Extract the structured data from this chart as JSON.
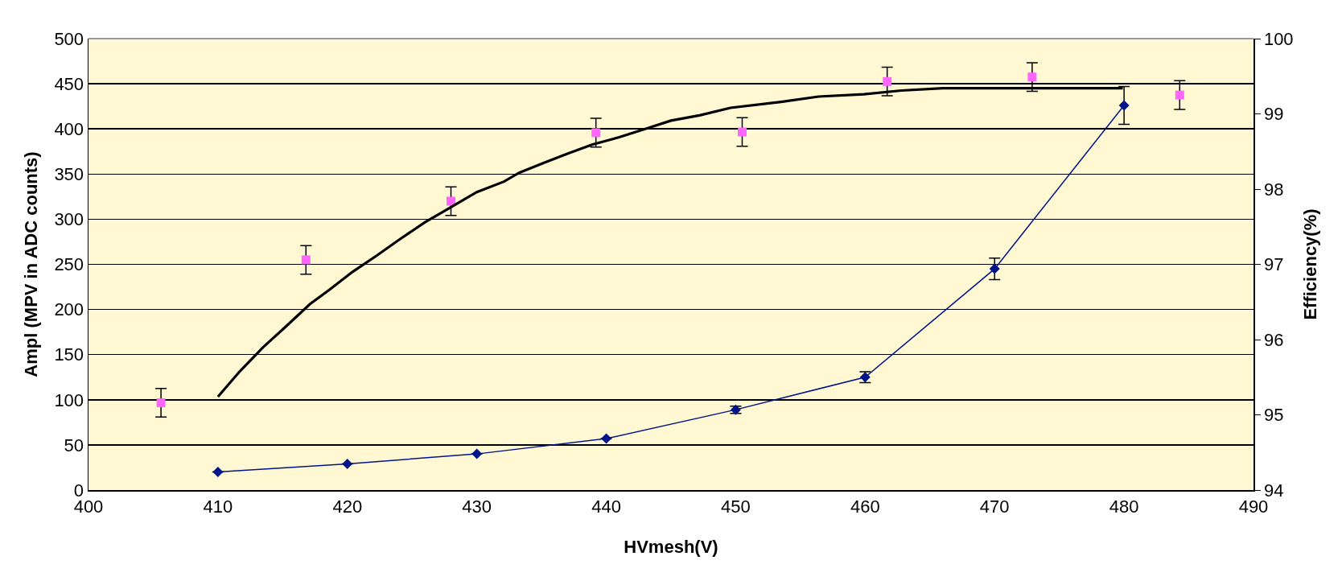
{
  "chart_data": {
    "type": "scatter",
    "xlabel": "HVmesh(V)",
    "ylabel": "Ampl (MPV in ADC counts)",
    "y2label": "Efficiency(%)",
    "xlim": [
      400,
      490
    ],
    "xticks": [
      400,
      410,
      420,
      430,
      440,
      450,
      460,
      470,
      480,
      490
    ],
    "ylim": [
      0,
      500
    ],
    "yticks": [
      0,
      50,
      100,
      150,
      200,
      250,
      300,
      350,
      400,
      450,
      500
    ],
    "y2lim": [
      94,
      100
    ],
    "y2ticks": [
      94,
      95,
      96,
      97,
      98,
      99,
      100
    ],
    "grid": "y",
    "series": [
      {
        "type": "line",
        "color": "#00148c",
        "marker": "diamond",
        "x": [
          410,
          420,
          430,
          440,
          450,
          460,
          470,
          480
        ],
        "values": [
          20,
          29,
          40,
          57,
          89,
          125,
          245,
          426
        ],
        "errors": [
          null,
          null,
          null,
          null,
          4,
          6,
          12,
          21
        ]
      },
      {
        "axis": "y2",
        "color": "#ff66ff",
        "marker": "square",
        "x": [
          405.6,
          416.8,
          428.0,
          439.2,
          450.5,
          461.7,
          472.9,
          484.3
        ],
        "values": [
          95.16,
          97.06,
          97.84,
          98.75,
          98.76,
          99.43,
          99.49,
          99.25
        ],
        "errors": [
          0.19,
          0.19,
          0.19,
          0.19,
          0.19,
          0.19,
          0.19,
          0.19
        ]
      },
      {
        "type": "line",
        "axis": "y2",
        "color": "#000000",
        "marker": "none",
        "x": [
          410,
          411.7,
          413.5,
          415.1,
          417.1,
          418.6,
          420.4,
          422.3,
          424.1,
          426.0,
          427.8,
          430.0,
          432.1,
          433.3,
          435.2,
          437.0,
          438.9,
          441.0,
          443.2,
          445.0,
          447.2,
          449.6,
          453.5,
          456.4,
          459.9,
          462.8,
          466.0,
          479.9
        ],
        "values": [
          95.24,
          95.58,
          95.9,
          96.15,
          96.47,
          96.66,
          96.9,
          97.12,
          97.34,
          97.56,
          97.74,
          97.96,
          98.1,
          98.22,
          98.35,
          98.47,
          98.59,
          98.69,
          98.81,
          98.91,
          98.98,
          99.08,
          99.16,
          99.23,
          99.26,
          99.31,
          99.34,
          99.34
        ]
      }
    ]
  }
}
